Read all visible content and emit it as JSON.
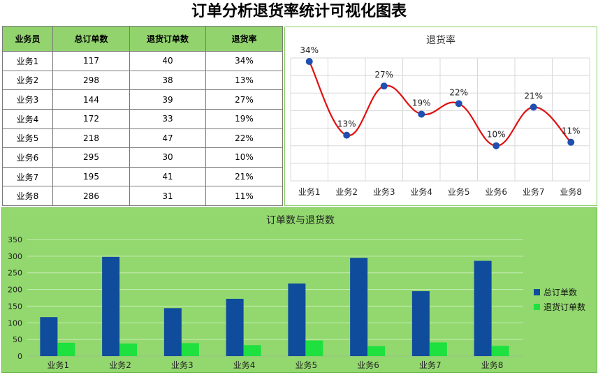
{
  "title": "订单分析退货率统计可视化图表",
  "table": {
    "headers": [
      "业务员",
      "总订单数",
      "退货订单数",
      "退货率"
    ],
    "rows": [
      [
        "业务1",
        "117",
        "40",
        "34%"
      ],
      [
        "业务2",
        "298",
        "38",
        "13%"
      ],
      [
        "业务3",
        "144",
        "39",
        "27%"
      ],
      [
        "业务4",
        "172",
        "33",
        "19%"
      ],
      [
        "业务5",
        "218",
        "47",
        "22%"
      ],
      [
        "业务6",
        "295",
        "30",
        "10%"
      ],
      [
        "业务7",
        "195",
        "41",
        "21%"
      ],
      [
        "业务8",
        "286",
        "31",
        "11%"
      ]
    ]
  },
  "chart_data": [
    {
      "type": "line",
      "title": "退货率",
      "categories": [
        "业务1",
        "业务2",
        "业务3",
        "业务4",
        "业务5",
        "业务6",
        "业务7",
        "业务8"
      ],
      "values": [
        34,
        13,
        27,
        19,
        22,
        10,
        21,
        11
      ],
      "data_labels": [
        "34%",
        "13%",
        "27%",
        "19%",
        "22%",
        "10%",
        "21%",
        "11%"
      ],
      "ylim": [
        0,
        35
      ],
      "grid": true,
      "line_color": "#e01010",
      "marker_color": "#1f4fb0"
    },
    {
      "type": "bar",
      "title": "订单数与退货数",
      "categories": [
        "业务1",
        "业务2",
        "业务3",
        "业务4",
        "业务5",
        "业务6",
        "业务7",
        "业务8"
      ],
      "series": [
        {
          "name": "总订单数",
          "values": [
            117,
            298,
            144,
            172,
            218,
            295,
            195,
            286
          ],
          "color": "#0f4c9c"
        },
        {
          "name": "退货订单数",
          "values": [
            40,
            38,
            39,
            33,
            47,
            30,
            41,
            31
          ],
          "color": "#1ee03e"
        }
      ],
      "yticks": [
        "0",
        "50",
        "100",
        "150",
        "200",
        "250",
        "300",
        "350"
      ],
      "ylim": [
        0,
        350
      ],
      "grid": true,
      "legend": "right"
    }
  ]
}
